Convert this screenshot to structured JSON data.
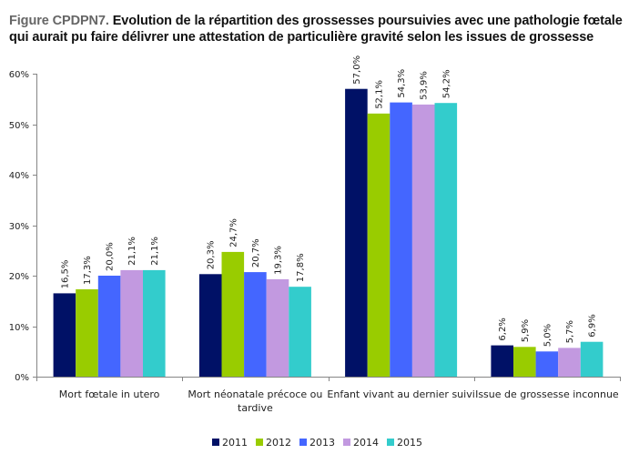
{
  "title": {
    "prefix": "Figure CPDPN7.",
    "text": " Evolution de la répartition des grossesses poursuivies avec une pathologie fœtale qui aurait pu faire délivrer une attestation de particulière gravité selon les issues de grossesse"
  },
  "chart_data": {
    "type": "bar",
    "title": "Figure CPDPN7. Evolution de la répartition des grossesses poursuivies avec une pathologie fœtale qui aurait pu faire délivrer une attestation de particulière gravité selon les issues de grossesse",
    "xlabel": "",
    "ylabel": "",
    "ylim": [
      0,
      60
    ],
    "yticks": [
      0,
      10,
      20,
      30,
      40,
      50,
      60
    ],
    "ytick_labels": [
      "0%",
      "10%",
      "20%",
      "30%",
      "40%",
      "50%",
      "60%"
    ],
    "grid": false,
    "legend_position": "bottom",
    "categories": [
      [
        "Mort fœtale in utero"
      ],
      [
        "Mort néonatale précoce ou",
        "tardive"
      ],
      [
        "Enfant vivant au dernier suivi"
      ],
      [
        "Issue de grossesse inconnue"
      ]
    ],
    "series": [
      {
        "name": "2011",
        "color": "#001166",
        "values": [
          16.5,
          20.3,
          57.0,
          6.2
        ],
        "labels": [
          "16,5%",
          "20,3%",
          "57,0%",
          "6,2%"
        ]
      },
      {
        "name": "2012",
        "color": "#99cc00",
        "values": [
          17.3,
          24.7,
          52.1,
          5.9
        ],
        "labels": [
          "17,3%",
          "24,7%",
          "52,1%",
          "5,9%"
        ]
      },
      {
        "name": "2013",
        "color": "#4466ff",
        "values": [
          20.0,
          20.7,
          54.3,
          5.0
        ],
        "labels": [
          "20,0%",
          "20,7%",
          "54,3%",
          "5,0%"
        ]
      },
      {
        "name": "2014",
        "color": "#c299e0",
        "values": [
          21.1,
          19.3,
          53.9,
          5.7
        ],
        "labels": [
          "21,1%",
          "19,3%",
          "53,9%",
          "5,7%"
        ]
      },
      {
        "name": "2015",
        "color": "#33cccc",
        "values": [
          21.1,
          17.8,
          54.2,
          6.9
        ],
        "labels": [
          "21,1%",
          "17,8%",
          "54,2%",
          "6,9%"
        ]
      }
    ]
  }
}
